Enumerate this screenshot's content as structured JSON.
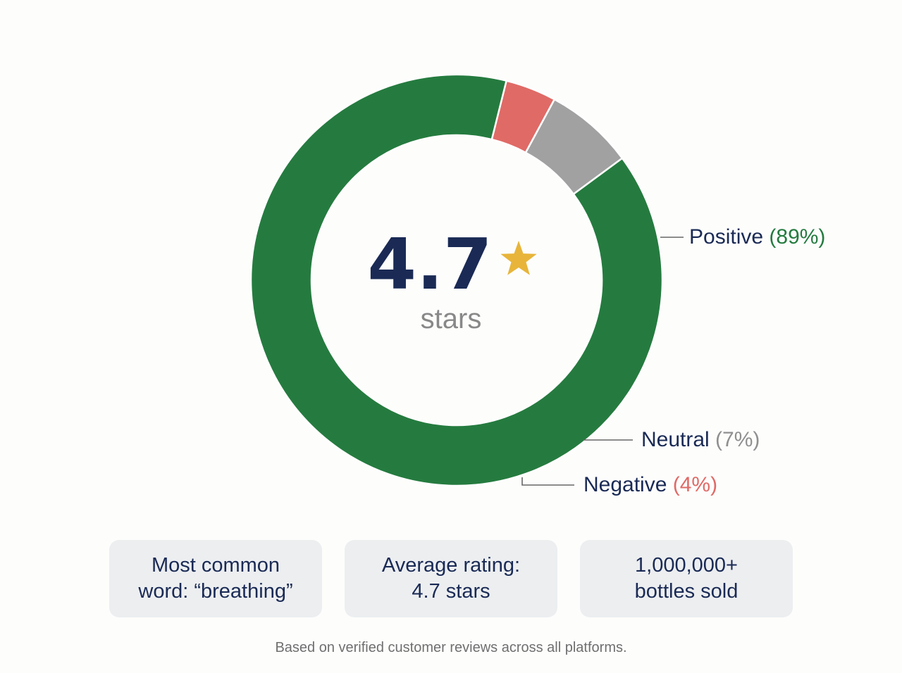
{
  "chart_data": {
    "type": "pie",
    "variant": "donut",
    "categories": [
      "Positive",
      "Neutral",
      "Negative"
    ],
    "values": [
      89,
      7,
      4
    ],
    "value_labels": [
      "(89%)",
      "(7%)",
      "(4%)"
    ],
    "colors": {
      "Positive": "#257b3f",
      "Neutral": "#a1a1a1",
      "Negative": "#e06a66"
    },
    "label_color": "#1a2a55",
    "leader_line_color": "#666666",
    "center": {
      "value": "4.7",
      "unit": "stars",
      "icon": "star-icon",
      "value_color": "#1a2a55",
      "unit_color": "#888888",
      "icon_color": "#e8b53a"
    }
  },
  "cards": [
    {
      "lines": [
        "Most common",
        "word: “breathing”"
      ]
    },
    {
      "lines": [
        "Average rating:",
        "4.7 stars"
      ]
    },
    {
      "lines": [
        "1,000,000+",
        "bottles sold"
      ]
    }
  ],
  "footnote": "Based on verified customer reviews across all platforms."
}
